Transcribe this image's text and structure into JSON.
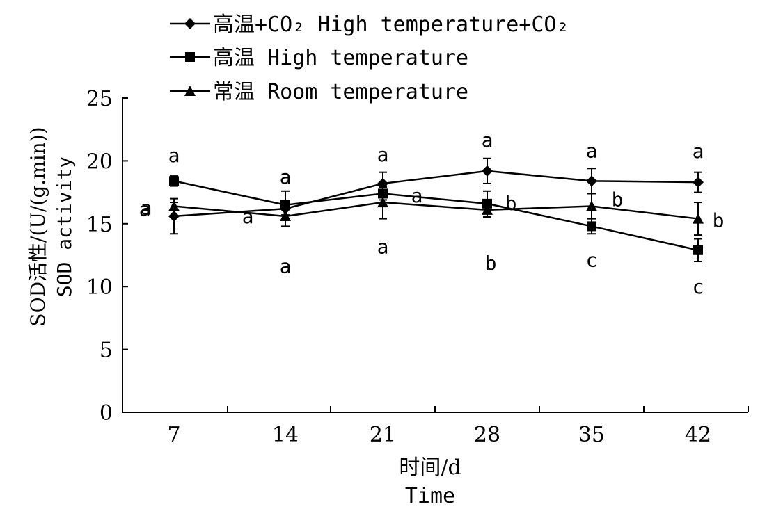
{
  "chart_data": {
    "type": "line",
    "x": [
      7,
      14,
      21,
      28,
      35,
      42
    ],
    "categories": [
      "7",
      "14",
      "21",
      "28",
      "35",
      "42"
    ],
    "ylim": [
      0,
      25
    ],
    "yticks": [
      "0",
      "5",
      "10",
      "15",
      "20",
      "25"
    ],
    "ylabel_cn": "SOD活性/(U/(g.min))",
    "ylabel_en": "SOD activity",
    "xlabel_cn": "时间/d",
    "xlabel_en": "Time",
    "grid": false,
    "legend_position": "top",
    "series": [
      {
        "name": "高温+CO₂ High temperature+CO₂",
        "marker": "diamond",
        "values": [
          15.6,
          16.2,
          18.2,
          19.2,
          18.4,
          18.3
        ],
        "errors": [
          1.4,
          0.5,
          0.9,
          1.0,
          1.0,
          0.8
        ],
        "letters": [
          "a",
          "a",
          "a",
          "a",
          "a",
          "a"
        ]
      },
      {
        "name": "高温 High temperature",
        "marker": "square",
        "values": [
          18.4,
          16.5,
          17.4,
          16.6,
          14.8,
          12.9
        ],
        "errors": [
          0.4,
          1.1,
          0.5,
          1.0,
          0.6,
          0.9
        ],
        "letters": [
          "a",
          "a",
          "a",
          "b",
          "c",
          "c"
        ]
      },
      {
        "name": "常温 Room temperature",
        "marker": "triangle",
        "values": [
          16.4,
          15.6,
          16.7,
          16.1,
          16.4,
          15.4
        ],
        "errors": [
          0.3,
          0.8,
          1.3,
          0.6,
          1.0,
          1.3
        ],
        "letters": [
          "a",
          "a",
          "a",
          "b",
          "b",
          "b"
        ]
      }
    ]
  }
}
